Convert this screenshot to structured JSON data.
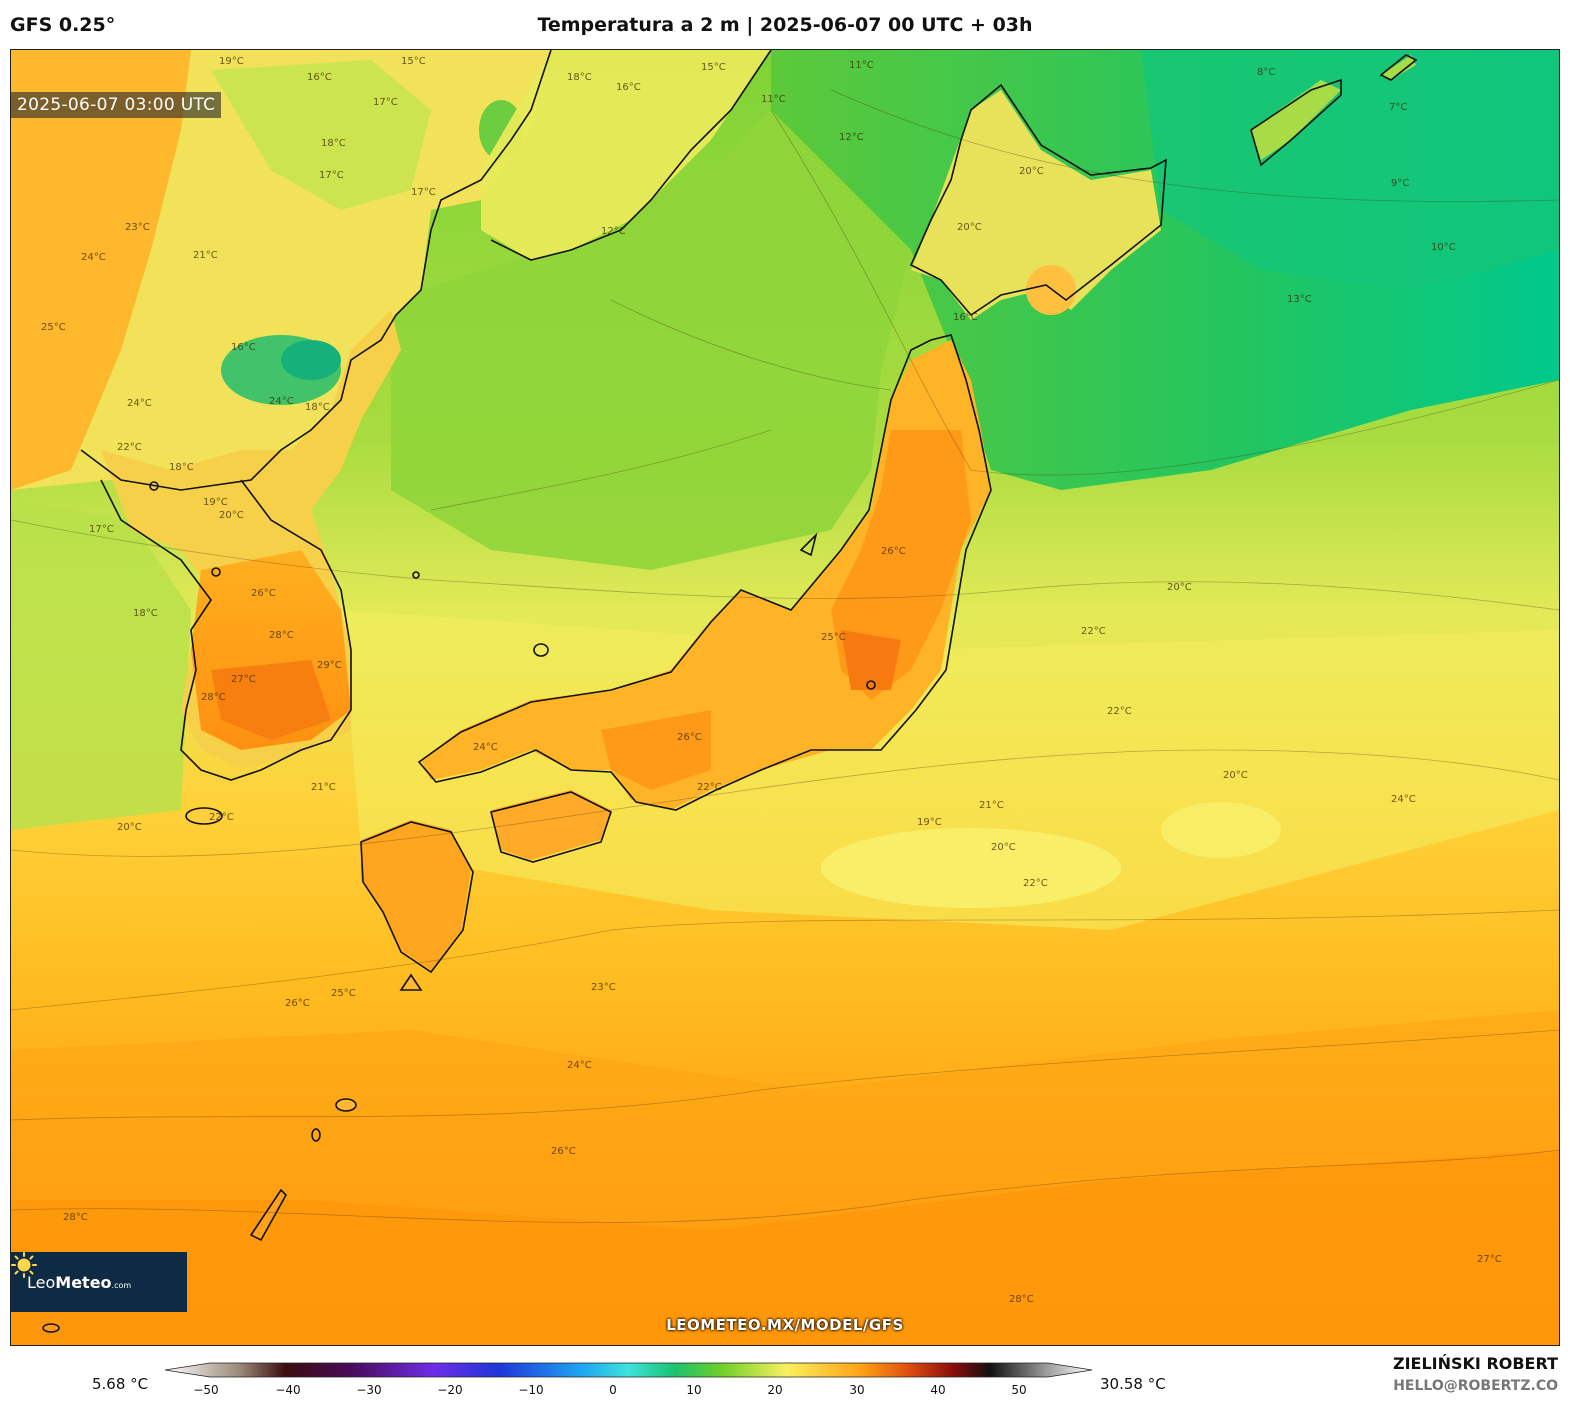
{
  "header": {
    "model": "GFS 0.25°",
    "title": "Temperatura a 2 m | 2025-06-07 00 UTC + 03h"
  },
  "map": {
    "valid_time": "2025-06-07 03:00 UTC",
    "watermark": "LEOMETEO.MX/MODEL/GFS",
    "logo": {
      "brand_light": "Leo",
      "brand_bold": "Meteo",
      "brand_suffix": ".com"
    },
    "contour_labels": [
      "19°C",
      "16°C",
      "15°C",
      "18°C",
      "16°C",
      "15°C",
      "11°C",
      "11°C",
      "8°C",
      "7°C",
      "17°C",
      "18°C",
      "17°C",
      "12°C",
      "20°C",
      "9°C",
      "23°C",
      "24°C",
      "21°C",
      "17°C",
      "12°C",
      "10°C",
      "20°C",
      "16°C",
      "13°C",
      "25°C",
      "16°C",
      "18°C",
      "24°C",
      "24°C",
      "22°C",
      "18°C",
      "19°C",
      "20°C",
      "17°C",
      "26°C",
      "18°C",
      "28°C",
      "20°C",
      "22°C",
      "29°C",
      "27°C",
      "28°C",
      "26°C",
      "25°C",
      "22°C",
      "24°C",
      "26°C",
      "22°C",
      "21°C",
      "20°C",
      "22°C",
      "20°C",
      "21°C",
      "19°C",
      "20°C",
      "22°C",
      "24°C",
      "23°C",
      "26°C",
      "25°C",
      "24°C",
      "26°C",
      "28°C",
      "28°C",
      "27°C"
    ]
  },
  "colorbar": {
    "min_label": "5.68 °C",
    "max_label": "30.58 °C",
    "ticks": [
      "−50",
      "−40",
      "−30",
      "−20",
      "−10",
      "0",
      "10",
      "20",
      "30",
      "40",
      "50"
    ]
  },
  "footer": {
    "author": "ZIELIŃSKI ROBERT",
    "email": "HELLO@ROBERTZ.CO"
  },
  "colors": {
    "logo_bg": "#0f2a44",
    "land_border": "#111111"
  }
}
